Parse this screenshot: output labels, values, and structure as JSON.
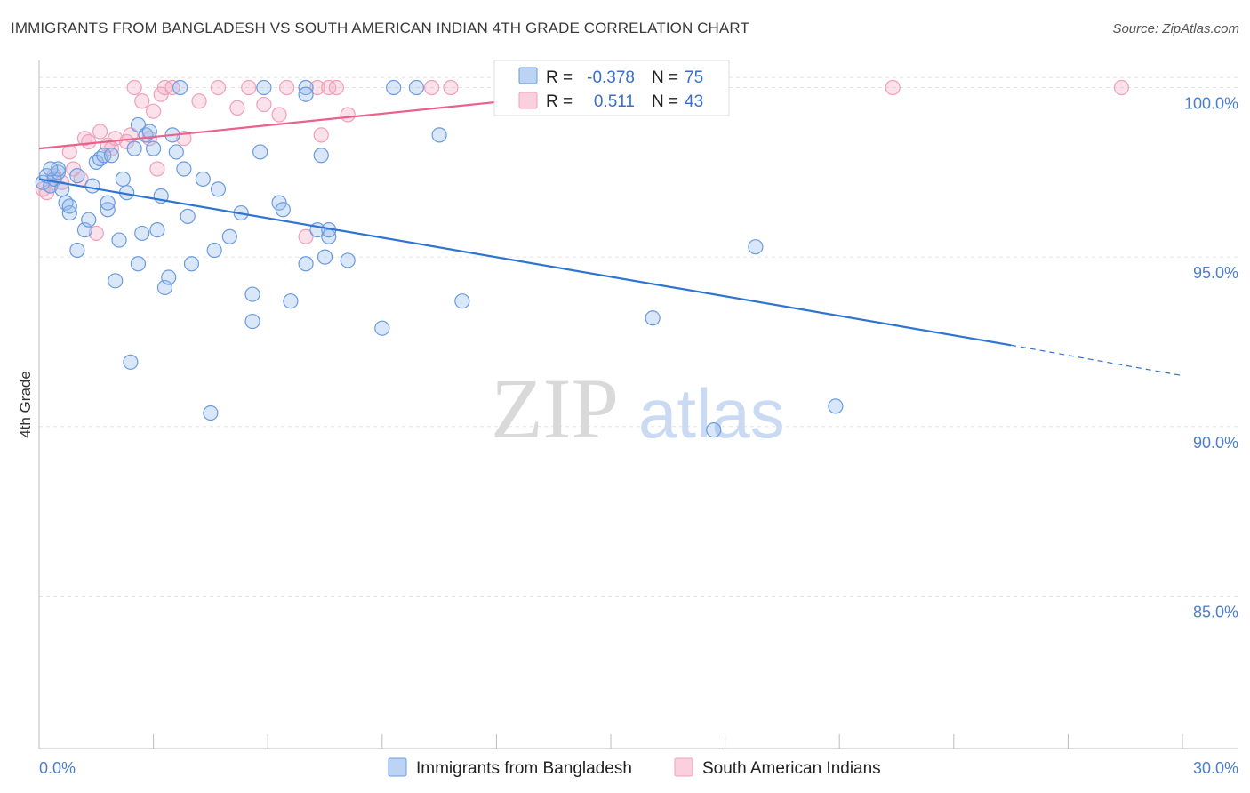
{
  "title": "IMMIGRANTS FROM BANGLADESH VS SOUTH AMERICAN INDIAN 4TH GRADE CORRELATION CHART",
  "source": "Source: ZipAtlas.com",
  "watermark": {
    "zip": "ZIP",
    "atlas": "atlas"
  },
  "colors": {
    "blue": "#6a9be0",
    "blue_line": "#2f74d0",
    "pink": "#f0a0b8",
    "pink_line": "#e8628c"
  },
  "legend": {
    "r_label": "R =",
    "n_label": "N =",
    "rows": [
      {
        "r": "-0.378",
        "n": "75"
      },
      {
        "r": "0.511",
        "n": "43"
      }
    ]
  },
  "chart_data": {
    "type": "scatter",
    "xlabel": "",
    "ylabel": "4th Grade",
    "xlim": [
      0,
      30
    ],
    "ylim": [
      80.5,
      100.8
    ],
    "x_tick_labels": [
      "0.0%",
      "30.0%"
    ],
    "y_tick_labels": [
      "100.0%",
      "95.0%",
      "90.0%",
      "85.0%"
    ],
    "y_ticks": [
      100,
      95,
      90,
      85
    ],
    "grid": true,
    "series": [
      {
        "name": "Immigrants from Bangladesh",
        "color": "#6a9be0",
        "trend": {
          "x0": 0,
          "y0": 97.3,
          "x1": 25.5,
          "y1": 92.4,
          "dash_to_x": 30,
          "dash_to_y": 91.5
        },
        "points": [
          [
            0.1,
            97.2
          ],
          [
            0.2,
            97.4
          ],
          [
            0.3,
            97.1
          ],
          [
            0.4,
            97.3
          ],
          [
            0.5,
            97.5
          ],
          [
            0.6,
            97.0
          ],
          [
            0.5,
            97.6
          ],
          [
            0.7,
            96.6
          ],
          [
            0.8,
            96.3
          ],
          [
            0.8,
            96.5
          ],
          [
            1.0,
            97.4
          ],
          [
            1.0,
            95.2
          ],
          [
            1.2,
            95.8
          ],
          [
            1.3,
            96.1
          ],
          [
            1.4,
            97.1
          ],
          [
            1.5,
            97.8
          ],
          [
            1.6,
            97.9
          ],
          [
            1.7,
            98.0
          ],
          [
            1.8,
            96.4
          ],
          [
            1.8,
            96.6
          ],
          [
            1.9,
            98.0
          ],
          [
            2.0,
            94.3
          ],
          [
            2.1,
            95.5
          ],
          [
            2.2,
            97.3
          ],
          [
            2.3,
            96.9
          ],
          [
            2.4,
            91.9
          ],
          [
            2.5,
            98.2
          ],
          [
            2.6,
            94.8
          ],
          [
            2.6,
            98.9
          ],
          [
            2.7,
            95.7
          ],
          [
            2.8,
            98.6
          ],
          [
            2.9,
            98.7
          ],
          [
            3.0,
            98.2
          ],
          [
            3.1,
            95.8
          ],
          [
            3.2,
            96.8
          ],
          [
            3.3,
            94.1
          ],
          [
            3.4,
            94.4
          ],
          [
            3.5,
            98.6
          ],
          [
            3.6,
            98.1
          ],
          [
            3.7,
            100.0
          ],
          [
            3.8,
            97.6
          ],
          [
            3.9,
            96.2
          ],
          [
            4.0,
            94.8
          ],
          [
            4.3,
            97.3
          ],
          [
            4.5,
            90.4
          ],
          [
            4.6,
            95.2
          ],
          [
            4.7,
            97.0
          ],
          [
            5.0,
            95.6
          ],
          [
            5.3,
            96.3
          ],
          [
            5.6,
            93.9
          ],
          [
            5.6,
            93.1
          ],
          [
            5.8,
            98.1
          ],
          [
            5.9,
            100.0
          ],
          [
            6.3,
            96.6
          ],
          [
            6.4,
            96.4
          ],
          [
            6.6,
            93.7
          ],
          [
            7.0,
            100.0
          ],
          [
            7.0,
            94.8
          ],
          [
            7.3,
            95.8
          ],
          [
            7.4,
            98.0
          ],
          [
            7.5,
            95.0
          ],
          [
            7.6,
            95.6
          ],
          [
            7.6,
            95.8
          ],
          [
            8.1,
            94.9
          ],
          [
            9.0,
            92.9
          ],
          [
            9.3,
            100.0
          ],
          [
            9.9,
            100.0
          ],
          [
            10.5,
            98.6
          ],
          [
            11.1,
            93.7
          ],
          [
            16.1,
            93.2
          ],
          [
            17.7,
            89.9
          ],
          [
            18.8,
            95.3
          ],
          [
            20.9,
            90.6
          ],
          [
            7.0,
            99.8
          ],
          [
            0.3,
            97.6
          ]
        ]
      },
      {
        "name": "South American Indians",
        "color": "#f0a0b8",
        "trend": {
          "x0": 0,
          "y0": 98.2,
          "x1": 17.5,
          "y1": 100.2
        },
        "points": [
          [
            0.1,
            97.0
          ],
          [
            0.3,
            97.1
          ],
          [
            0.4,
            97.4
          ],
          [
            0.6,
            97.2
          ],
          [
            0.8,
            98.1
          ],
          [
            0.9,
            97.6
          ],
          [
            1.1,
            97.3
          ],
          [
            1.2,
            98.5
          ],
          [
            1.3,
            98.4
          ],
          [
            1.5,
            95.7
          ],
          [
            1.6,
            98.7
          ],
          [
            1.8,
            98.3
          ],
          [
            1.9,
            98.2
          ],
          [
            2.0,
            98.5
          ],
          [
            2.3,
            98.4
          ],
          [
            2.4,
            98.6
          ],
          [
            2.5,
            100.0
          ],
          [
            2.7,
            99.6
          ],
          [
            2.9,
            98.5
          ],
          [
            3.0,
            99.3
          ],
          [
            3.1,
            97.6
          ],
          [
            3.2,
            99.8
          ],
          [
            3.3,
            100.0
          ],
          [
            3.5,
            100.0
          ],
          [
            3.8,
            98.5
          ],
          [
            4.2,
            99.6
          ],
          [
            4.7,
            100.0
          ],
          [
            5.2,
            99.4
          ],
          [
            5.5,
            100.0
          ],
          [
            5.9,
            99.5
          ],
          [
            6.3,
            99.2
          ],
          [
            6.5,
            100.0
          ],
          [
            7.0,
            95.6
          ],
          [
            7.3,
            100.0
          ],
          [
            7.4,
            98.6
          ],
          [
            7.6,
            100.0
          ],
          [
            7.8,
            100.0
          ],
          [
            8.1,
            99.2
          ],
          [
            10.3,
            100.0
          ],
          [
            10.8,
            100.0
          ],
          [
            22.4,
            100.0
          ],
          [
            28.4,
            100.0
          ],
          [
            0.2,
            96.9
          ]
        ]
      }
    ]
  }
}
